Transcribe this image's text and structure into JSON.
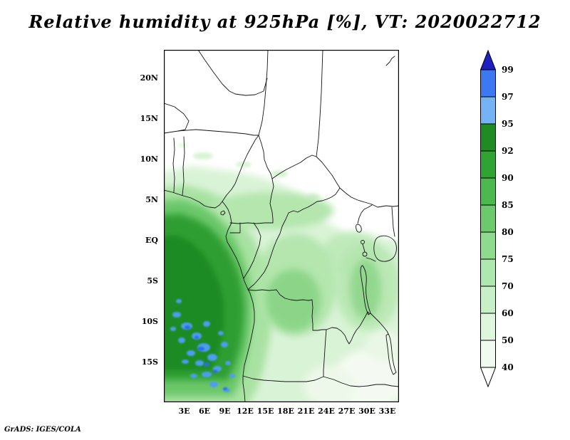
{
  "title": "Relative humidity at 925hPa [%], VT: 2020022712",
  "credit": "GrADS: IGES/COLA",
  "chart_data": {
    "type": "heatmap",
    "title": "Relative humidity at 925hPa [%], VT: 2020022712",
    "variable": "Relative humidity",
    "level": "925hPa",
    "units": "%",
    "valid_time_label": "VT: 2020022712",
    "x_tick_labels": [
      "3E",
      "6E",
      "9E",
      "12E",
      "15E",
      "18E",
      "21E",
      "24E",
      "27E",
      "30E",
      "33E"
    ],
    "y_tick_labels": [
      "20N",
      "15N",
      "10N",
      "5N",
      "EQ",
      "5S",
      "10S",
      "15S"
    ],
    "colorbar_levels": [
      "99",
      "97",
      "95",
      "92",
      "90",
      "85",
      "80",
      "75",
      "70",
      "60",
      "50",
      "40"
    ],
    "colorbar_colors": [
      "#2020c0",
      "#3c78f0",
      "#74b4f4",
      "#1e8c22",
      "#2fa432",
      "#4cb94e",
      "#6cca6c",
      "#8eda8e",
      "#aee8ae",
      "#c8f0c6",
      "#def6dc",
      "#f0faee",
      "#ffffff"
    ],
    "legend_position": "right",
    "field_summary": {
      "high_humidity": "Dark green with scattered blue patches (90-99%) along the Atlantic coast over Gabon, Congo and Angola, roughly 0-14E and 2N-17S",
      "moderate_humidity": "Broad light-to-medium greens (60-85%) across the Congo Basin and around the Rift Valley lakes",
      "dry": "White (below 40-50%) north of about 8N over the Sahel/Chad/Sudan and in parts of the far southeast of the domain"
    }
  }
}
